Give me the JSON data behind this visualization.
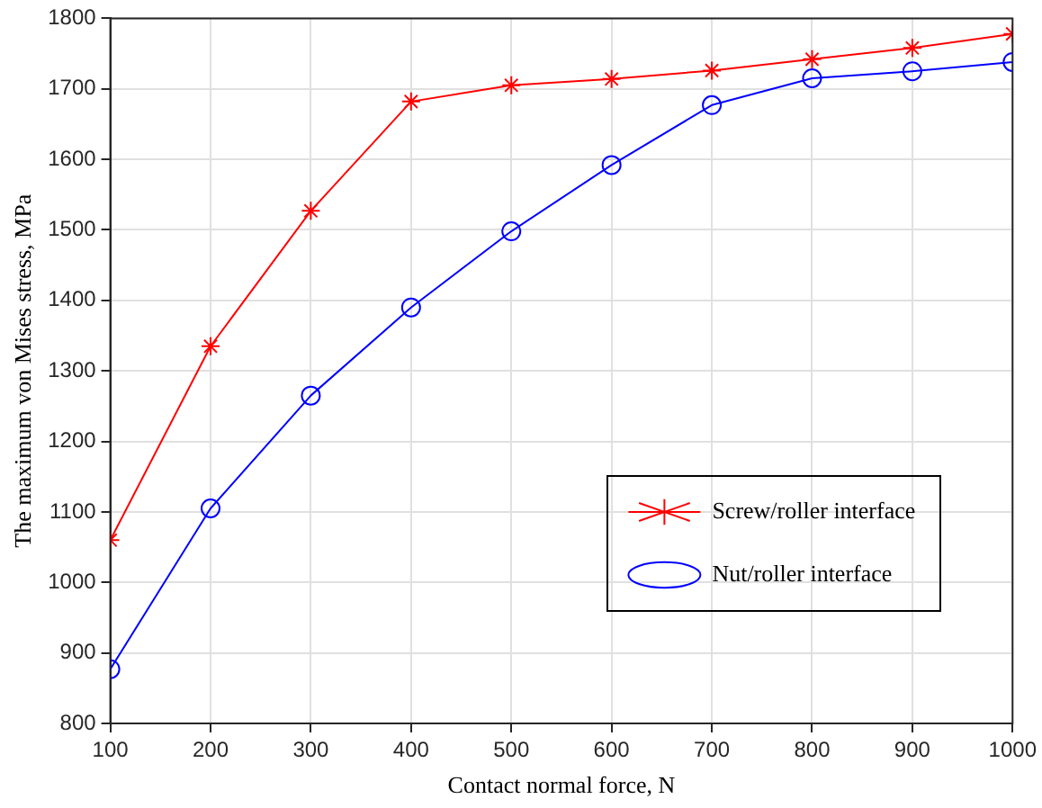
{
  "chart_data": {
    "type": "line",
    "xlabel": "Contact normal force, N",
    "ylabel": "The maximum von Mises stress, MPa",
    "x": [
      100,
      200,
      300,
      400,
      500,
      600,
      700,
      800,
      900,
      1000
    ],
    "series": [
      {
        "name": "Screw/roller interface",
        "color": "#ff0000",
        "marker": "cross",
        "values": [
          1060,
          1335,
          1527,
          1682,
          1705,
          1714,
          1726,
          1742,
          1758,
          1778
        ]
      },
      {
        "name": "Nut/roller interface",
        "color": "#0000ff",
        "marker": "circle",
        "values": [
          877,
          1105,
          1265,
          1390,
          1498,
          1592,
          1677,
          1715,
          1725,
          1738
        ]
      }
    ],
    "xlim": [
      100,
      1000
    ],
    "xticks": [
      100,
      200,
      300,
      400,
      500,
      600,
      700,
      800,
      900,
      1000
    ],
    "ylim": [
      800,
      1800
    ],
    "yticks": [
      800,
      900,
      1000,
      1100,
      1200,
      1300,
      1400,
      1500,
      1600,
      1700,
      1800
    ],
    "grid": true,
    "legend": "bottom right",
    "line_style": "solid"
  }
}
